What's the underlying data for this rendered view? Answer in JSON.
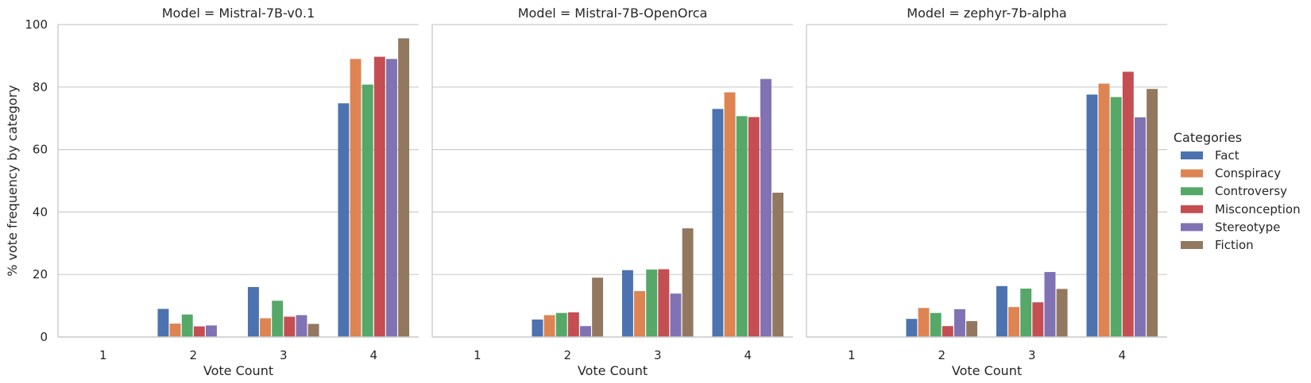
{
  "chart_data": {
    "type": "bar",
    "facet_label": "Model",
    "facets": [
      {
        "title": "Model = Mistral-7B-v0.1",
        "series_values": {
          "Fact": [
            0,
            9.0,
            16.0,
            74.8
          ],
          "Conspiracy": [
            0,
            4.3,
            6.0,
            89.0
          ],
          "Controversy": [
            0,
            7.2,
            11.6,
            80.8
          ],
          "Misconception": [
            0,
            3.4,
            6.5,
            89.7
          ],
          "Stereotype": [
            0,
            3.7,
            7.0,
            89.0
          ],
          "Fiction": [
            0,
            0,
            4.2,
            95.6
          ]
        }
      },
      {
        "title": "Model = Mistral-7B-OpenOrca",
        "series_values": {
          "Fact": [
            0,
            5.6,
            21.4,
            73.0
          ],
          "Conspiracy": [
            0,
            7.0,
            14.7,
            78.3
          ],
          "Controversy": [
            0,
            7.7,
            21.6,
            70.7
          ],
          "Misconception": [
            0,
            7.9,
            21.7,
            70.4
          ],
          "Stereotype": [
            0,
            3.5,
            13.9,
            82.6
          ],
          "Fiction": [
            0,
            19.0,
            34.8,
            46.2
          ]
        }
      },
      {
        "title": "Model = zephyr-7b-alpha",
        "series_values": {
          "Fact": [
            0,
            5.8,
            16.3,
            77.6
          ],
          "Conspiracy": [
            0,
            9.3,
            9.6,
            81.1
          ],
          "Controversy": [
            0,
            7.7,
            15.5,
            76.8
          ],
          "Misconception": [
            0,
            3.5,
            11.1,
            84.9
          ],
          "Stereotype": [
            0,
            8.9,
            20.8,
            70.3
          ],
          "Fiction": [
            0,
            5.1,
            15.4,
            79.4
          ]
        }
      }
    ],
    "categories": [
      "1",
      "2",
      "3",
      "4"
    ],
    "series": [
      {
        "name": "Fact",
        "color": "#4c72b0"
      },
      {
        "name": "Conspiracy",
        "color": "#dd8452"
      },
      {
        "name": "Controversy",
        "color": "#55a868"
      },
      {
        "name": "Misconception",
        "color": "#c44e52"
      },
      {
        "name": "Stereotype",
        "color": "#8172b3"
      },
      {
        "name": "Fiction",
        "color": "#937860"
      }
    ],
    "xlabel": "Vote Count",
    "ylabel": "% vote frequency by category",
    "ylim": [
      0,
      100
    ],
    "yticks": [
      0,
      20,
      40,
      60,
      80,
      100
    ],
    "grid": "horizontal",
    "legend_title": "Categories",
    "legend_position": "right"
  }
}
